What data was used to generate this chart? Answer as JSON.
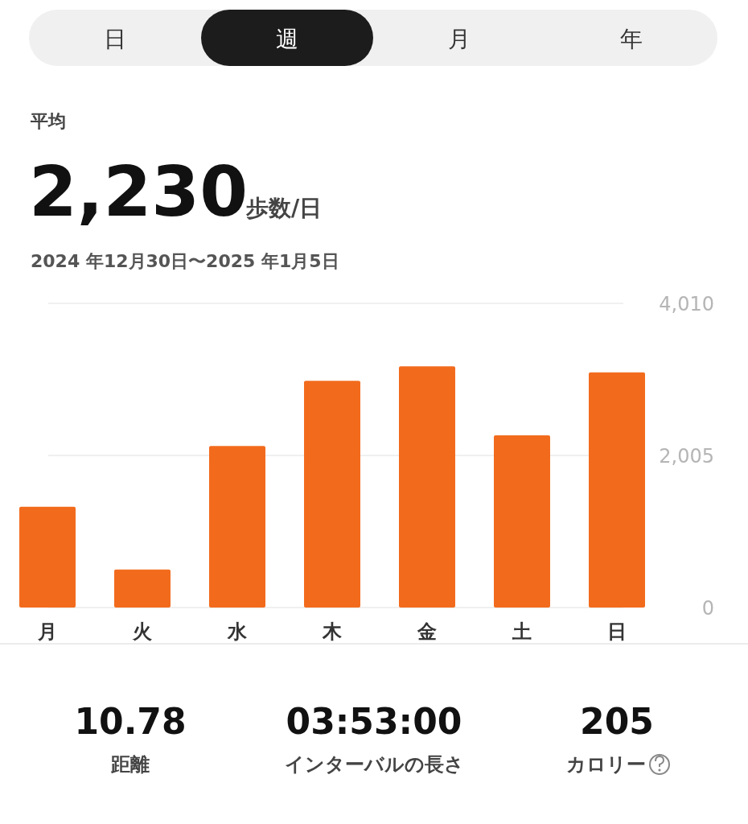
{
  "chart_data": {
    "type": "bar",
    "title": "平均",
    "categories": [
      "月",
      "火",
      "水",
      "木",
      "金",
      "土",
      "日"
    ],
    "values": [
      1330,
      500,
      2130,
      2990,
      3180,
      2270,
      3100
    ],
    "color": "#f26b1d",
    "ylim": [
      0,
      4010
    ],
    "yticks": [
      {
        "value": 0,
        "label": "0"
      },
      {
        "value": 2005,
        "label": "2,005"
      },
      {
        "value": 4010,
        "label": "4,010"
      }
    ],
    "grid": "y",
    "annotations": [
      "日",
      "週",
      "月",
      "年",
      "2,230",
      "歩数/日",
      "2024 年12月30日〜2025 年1月5日",
      "10.78",
      "距離",
      "03:53:00",
      "インターバルの長さ",
      "205",
      "カロリー"
    ]
  }
}
